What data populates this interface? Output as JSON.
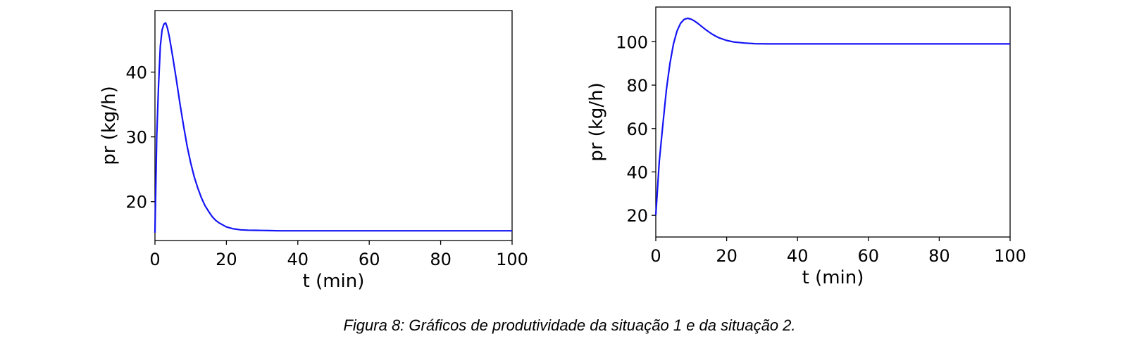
{
  "colors": {
    "line": "#1414f5",
    "axes": "#000000",
    "background": "#ffffff"
  },
  "caption": "Figura 8: Gráficos de produtividade da situação 1 e da situação 2.",
  "chart_data": [
    {
      "type": "line",
      "title": "",
      "xlabel": "t (min)",
      "ylabel": "pr (kg/h)",
      "xlim": [
        0,
        100
      ],
      "ylim": [
        14,
        49.5
      ],
      "xticks": [
        0,
        20,
        40,
        60,
        80,
        100
      ],
      "yticks": [
        20,
        30,
        40
      ],
      "grid": false,
      "series": [
        {
          "x": [
            0,
            0.5,
            1,
            1.5,
            2,
            2.5,
            3,
            3.5,
            4,
            5,
            6,
            7,
            8,
            9,
            10,
            11,
            12,
            13,
            14,
            15,
            16,
            17,
            18,
            20,
            22,
            24,
            26,
            28,
            30,
            35,
            40,
            50,
            60,
            70,
            80,
            90,
            100
          ],
          "y": [
            15.2,
            30,
            38,
            44,
            46.5,
            47.4,
            47.6,
            46.8,
            45.5,
            42.3,
            38.8,
            35.1,
            31.7,
            28.6,
            26,
            23.8,
            22.1,
            20.6,
            19.4,
            18.5,
            17.7,
            17.1,
            16.7,
            16.1,
            15.8,
            15.65,
            15.6,
            15.57,
            15.55,
            15.5,
            15.5,
            15.5,
            15.5,
            15.5,
            15.5,
            15.5,
            15.5
          ]
        }
      ]
    },
    {
      "type": "line",
      "title": "",
      "xlabel": "t (min)",
      "ylabel": "pr (kg/h)",
      "xlim": [
        0,
        100
      ],
      "ylim": [
        10,
        116
      ],
      "xticks": [
        0,
        20,
        40,
        60,
        80,
        100
      ],
      "yticks": [
        20,
        40,
        60,
        80,
        100
      ],
      "grid": false,
      "series": [
        {
          "x": [
            0,
            1,
            2,
            3,
            4,
            5,
            6,
            7,
            8,
            9,
            10,
            11,
            12,
            13,
            14,
            15,
            16,
            17,
            18,
            20,
            22,
            25,
            28,
            32,
            36,
            40,
            50,
            60,
            70,
            80,
            90,
            100
          ],
          "y": [
            20,
            45,
            62,
            78,
            90,
            99,
            105,
            108.5,
            110.3,
            110.8,
            110.4,
            109.5,
            108.3,
            107,
            105.7,
            104.5,
            103.4,
            102.5,
            101.7,
            100.6,
            99.9,
            99.4,
            99.1,
            99,
            99,
            99,
            99,
            99,
            99,
            99,
            99,
            99
          ]
        }
      ]
    }
  ]
}
